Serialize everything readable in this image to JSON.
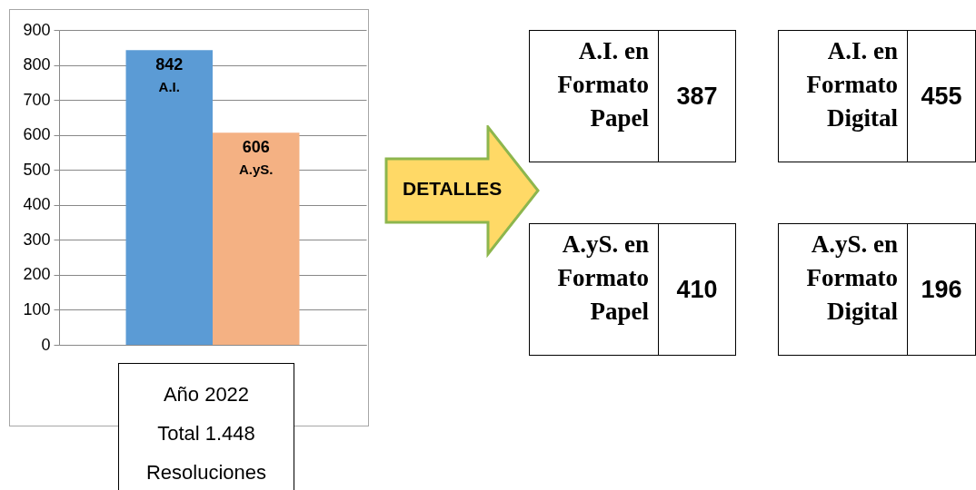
{
  "chart_data": {
    "type": "bar",
    "categories": [
      null
    ],
    "series": [
      {
        "name": "A.I.",
        "color": "#5b9bd5",
        "values": [
          842
        ]
      },
      {
        "name": "A.yS.",
        "color": "#f4b183",
        "values": [
          606
        ]
      }
    ],
    "ylim": [
      0,
      900
    ],
    "yticks": [
      0,
      100,
      200,
      300,
      400,
      500,
      600,
      700,
      800,
      900
    ],
    "grid": "y",
    "data_labels": true,
    "annotations": [
      "Año 2022",
      "Total 1.448",
      "Resoluciones",
      "DETALLES",
      "A.I. en Formato Papel",
      "387",
      "A.I. en Formato Digital",
      "455",
      "A.yS. en Formato Papel",
      "410",
      "A.yS. en Formato Digital",
      "196"
    ]
  }
}
